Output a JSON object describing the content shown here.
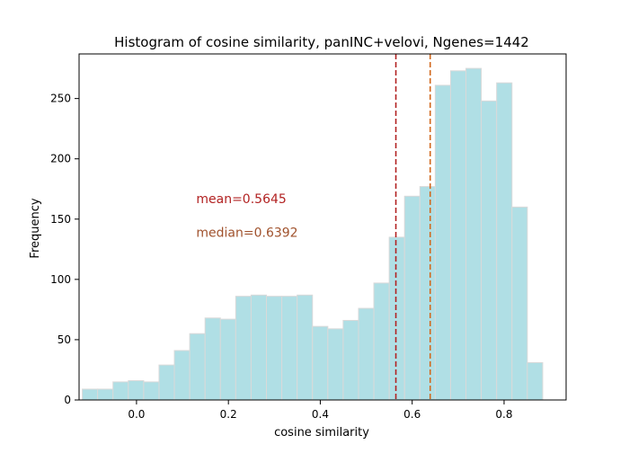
{
  "chart_data": {
    "type": "bar",
    "title": "Histogram of cosine similarity, panINC+velovi, Ngenes=1442",
    "xlabel": "cosine similarity",
    "ylabel": "Frequency",
    "xlim": [
      -0.125,
      0.935
    ],
    "ylim": [
      0,
      287
    ],
    "xticks": [
      0.0,
      0.2,
      0.4,
      0.6,
      0.8
    ],
    "xtick_labels": [
      "0.0",
      "0.2",
      "0.4",
      "0.6",
      "0.8"
    ],
    "yticks": [
      0,
      50,
      100,
      150,
      200,
      250
    ],
    "ytick_labels": [
      "0",
      "50",
      "100",
      "150",
      "200",
      "250"
    ],
    "bins": {
      "start": -0.118,
      "width": 0.0334,
      "counts": [
        9,
        9,
        15,
        16,
        15,
        29,
        41,
        55,
        68,
        67,
        86,
        87,
        86,
        86,
        87,
        61,
        59,
        66,
        76,
        97,
        135,
        169,
        177,
        261,
        273,
        275,
        248,
        263,
        160,
        31
      ]
    },
    "bar_color": "#b0dfe5",
    "bar_edge_color": "#d9d9d9",
    "reference_lines": [
      {
        "name": "mean",
        "x": 0.5645,
        "color": "#b22222",
        "style": "dashed"
      },
      {
        "name": "median",
        "x": 0.6392,
        "color": "#d2691e",
        "style": "dashed"
      }
    ],
    "annotations": {
      "mean_text": "mean=0.5645",
      "median_text": "median=0.6392",
      "mean_color": "#b22222",
      "median_color": "#a0522d",
      "mean_pos": {
        "x": 0.13,
        "y": 167
      },
      "median_pos": {
        "x": 0.13,
        "y": 139
      }
    },
    "grid": false,
    "legend": "none"
  }
}
